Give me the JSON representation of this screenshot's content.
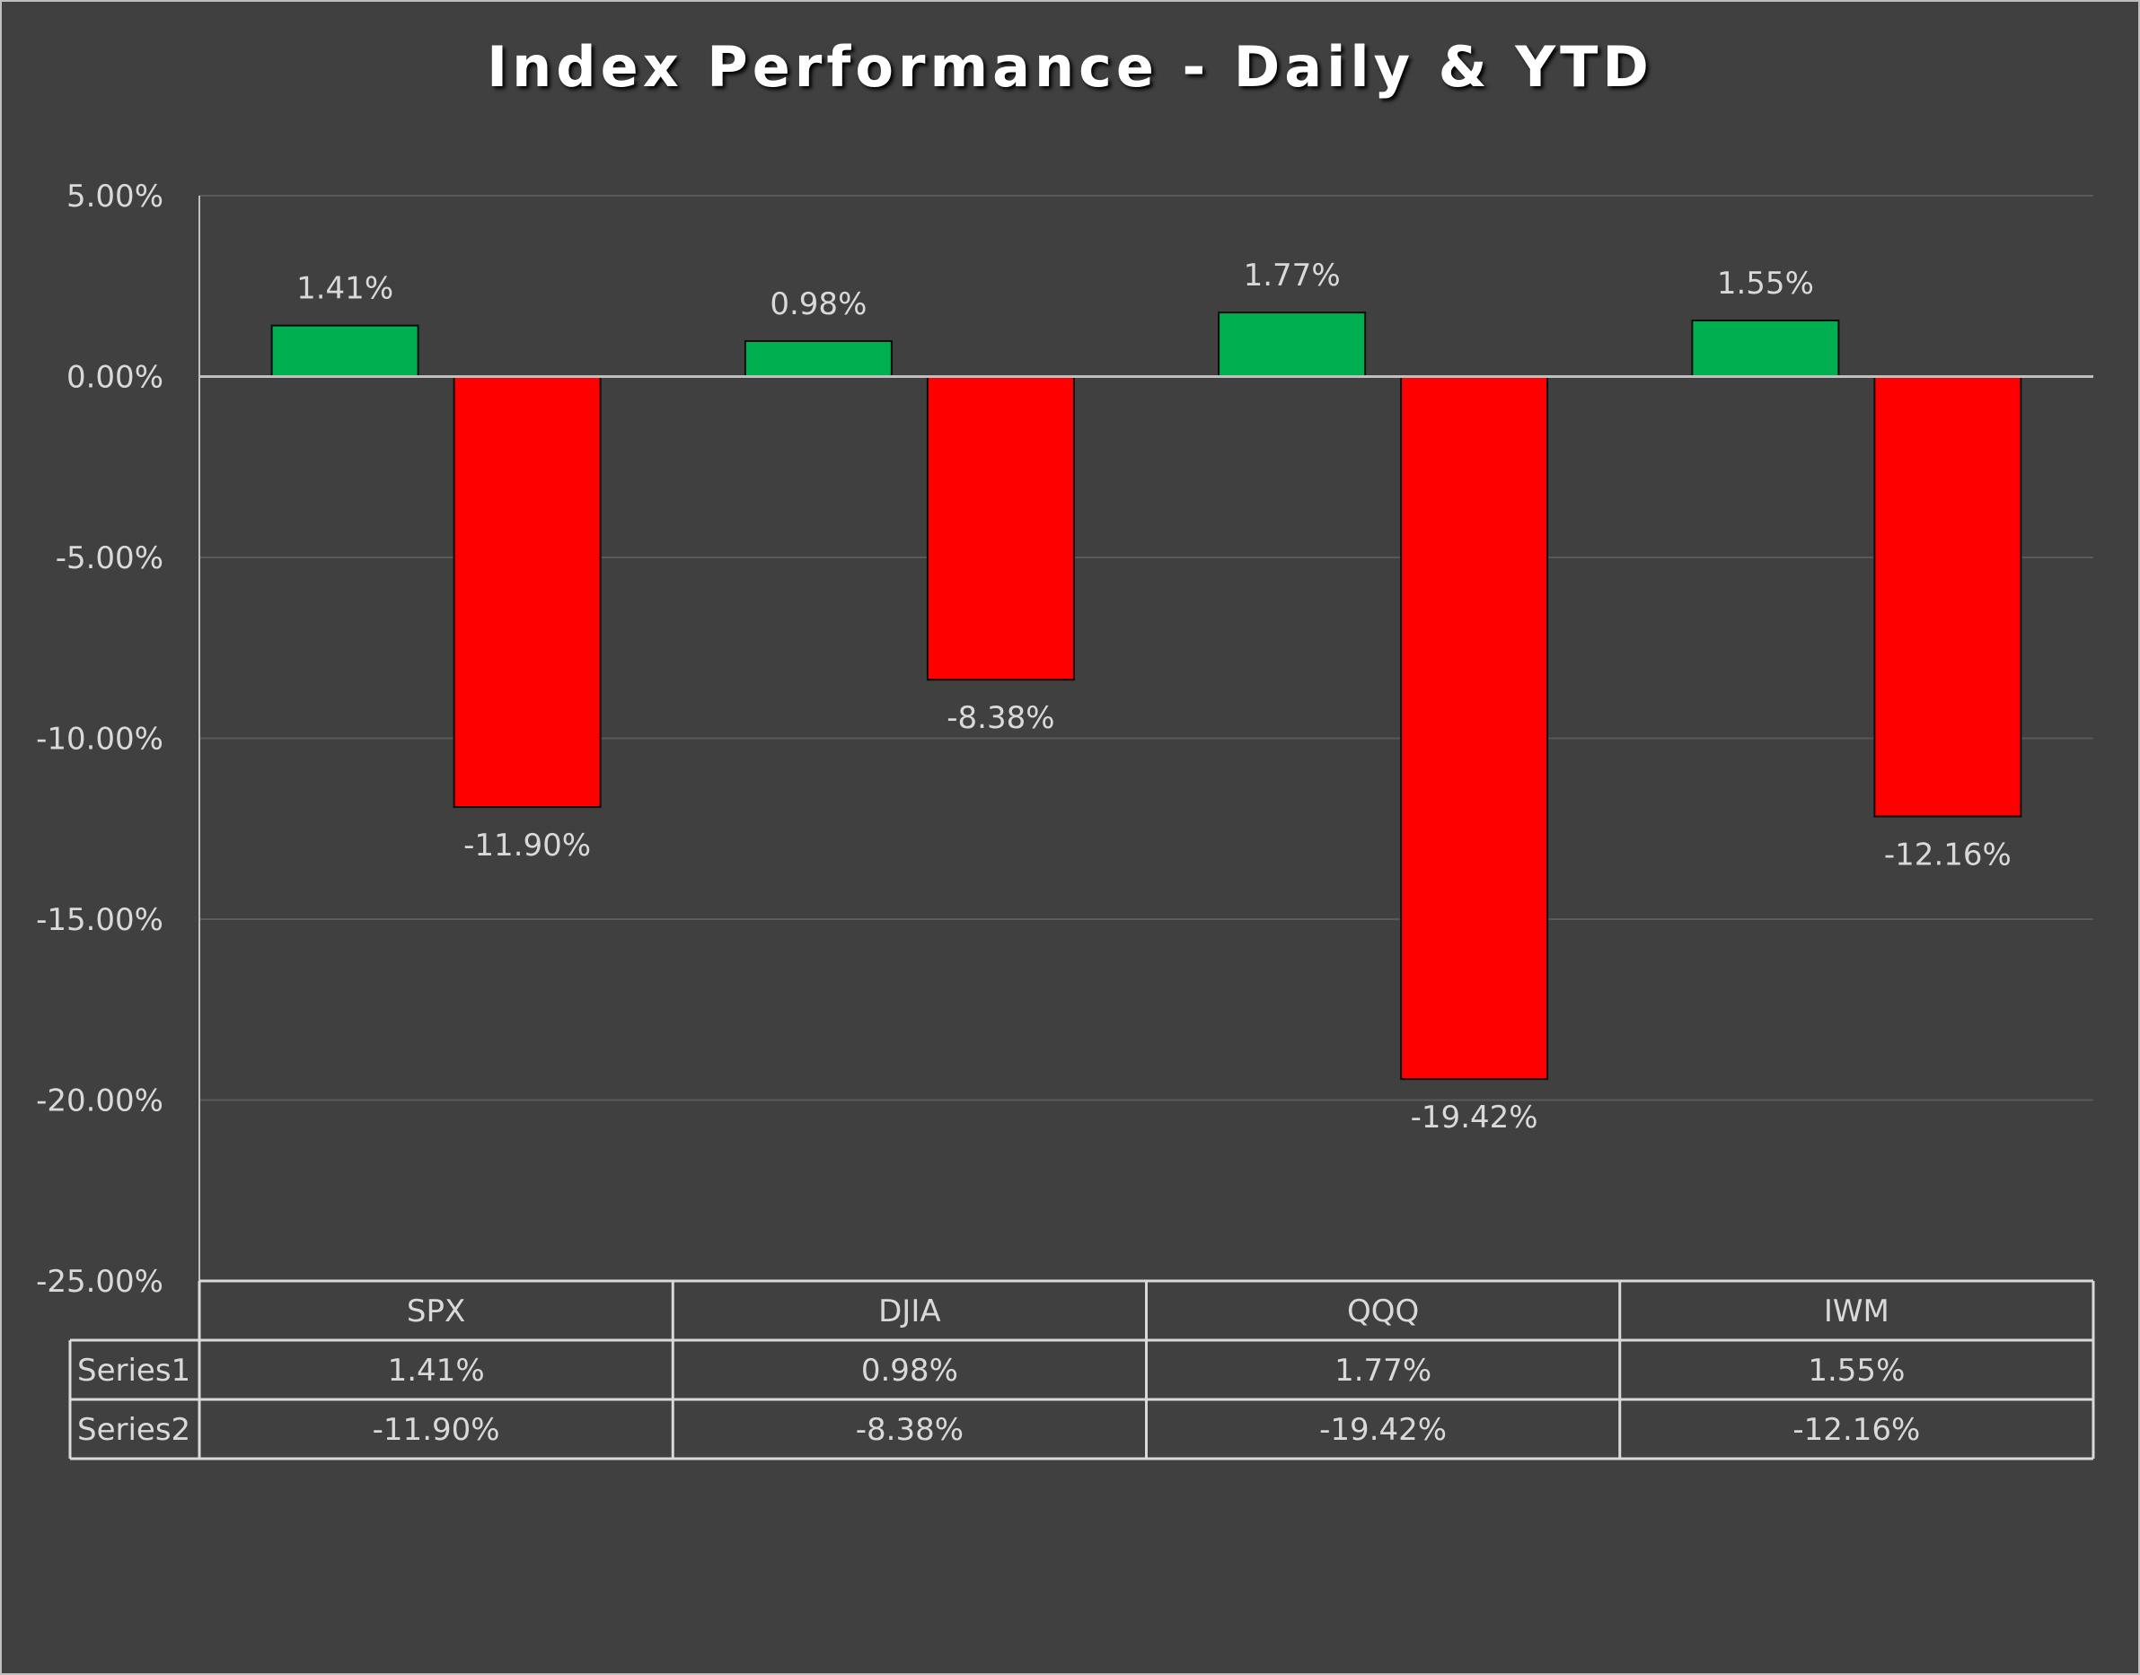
{
  "chart_data": {
    "type": "bar",
    "title": "Index Performance - Daily & YTD",
    "categories": [
      "SPX",
      "DJIA",
      "QQQ",
      "IWM"
    ],
    "series": [
      {
        "name": "Series1",
        "values": [
          1.41,
          0.98,
          1.77,
          1.55
        ],
        "labels": [
          "1.41%",
          "0.98%",
          "1.77%",
          "1.55%"
        ],
        "color": "#00b050"
      },
      {
        "name": "Series2",
        "values": [
          -11.9,
          -8.38,
          -19.42,
          -12.16
        ],
        "labels": [
          "-11.90%",
          "-8.38%",
          "-19.42%",
          "-12.16%"
        ],
        "color": "#ff0000"
      }
    ],
    "ylim": [
      -25,
      5
    ],
    "y_ticks": [
      5,
      0,
      -5,
      -10,
      -15,
      -20,
      -25
    ],
    "y_tick_labels": [
      "5.00%",
      "0.00%",
      "-5.00%",
      "-10.00%",
      "-15.00%",
      "-20.00%",
      "-25.00%"
    ],
    "grid": true,
    "data_table": true,
    "colors": {
      "background": "#404040",
      "text": "#d9d9d9",
      "grid": "#595959",
      "axis": "#bfbfbf"
    }
  }
}
